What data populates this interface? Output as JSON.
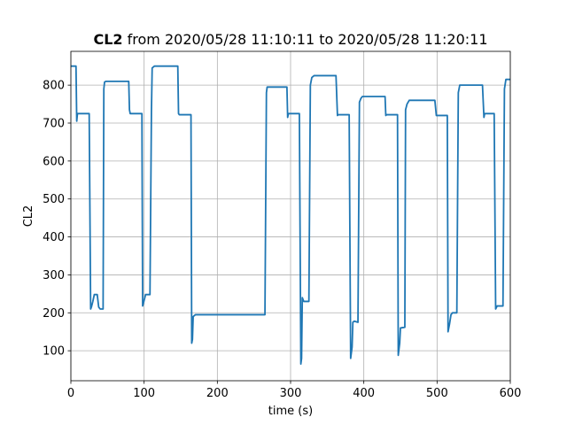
{
  "chart_data": {
    "type": "line",
    "title_parts": [
      "CL2",
      " from 2020/05/28 11:10:11 to 2020/05/28 11:20:11"
    ],
    "xlabel": "time (s)",
    "ylabel": "CL2",
    "color": "#1f77b4",
    "grid": true,
    "xlim": [
      0,
      600
    ],
    "xticks": [
      0,
      100,
      200,
      300,
      400,
      500,
      600
    ],
    "ylim": [
      21,
      889
    ],
    "yticks": [
      100,
      200,
      300,
      400,
      500,
      600,
      700,
      800
    ],
    "x": [
      0,
      7,
      8,
      9,
      25,
      27,
      28,
      30,
      32,
      36,
      38,
      40,
      44,
      45,
      46,
      48,
      79,
      80,
      81,
      97,
      98,
      99,
      101,
      102,
      108,
      110,
      111,
      114,
      146,
      147,
      148,
      164,
      165,
      166,
      167,
      170,
      265,
      267,
      268,
      295,
      296,
      297,
      312,
      314,
      315,
      316,
      318,
      325,
      327,
      329,
      332,
      362,
      364,
      365,
      380,
      382,
      384,
      385,
      387,
      392,
      394,
      396,
      398,
      429,
      430,
      431,
      446,
      447,
      449,
      450,
      456,
      457,
      459,
      462,
      497,
      499,
      514,
      515,
      517,
      519,
      521,
      527,
      529,
      531,
      562,
      564,
      565,
      578,
      580,
      582,
      590,
      592,
      594,
      600
    ],
    "values": [
      850,
      850,
      705,
      725,
      725,
      210,
      215,
      230,
      248,
      248,
      215,
      210,
      210,
      790,
      808,
      810,
      810,
      735,
      725,
      725,
      218,
      225,
      240,
      248,
      248,
      730,
      845,
      850,
      850,
      725,
      722,
      722,
      120,
      130,
      190,
      195,
      195,
      780,
      795,
      795,
      715,
      725,
      725,
      65,
      80,
      240,
      230,
      230,
      800,
      820,
      825,
      825,
      720,
      722,
      722,
      80,
      110,
      175,
      178,
      175,
      755,
      765,
      770,
      770,
      720,
      722,
      722,
      88,
      120,
      160,
      162,
      735,
      750,
      760,
      760,
      720,
      720,
      150,
      170,
      195,
      200,
      200,
      780,
      800,
      800,
      715,
      725,
      725,
      210,
      218,
      218,
      790,
      815,
      815
    ]
  }
}
